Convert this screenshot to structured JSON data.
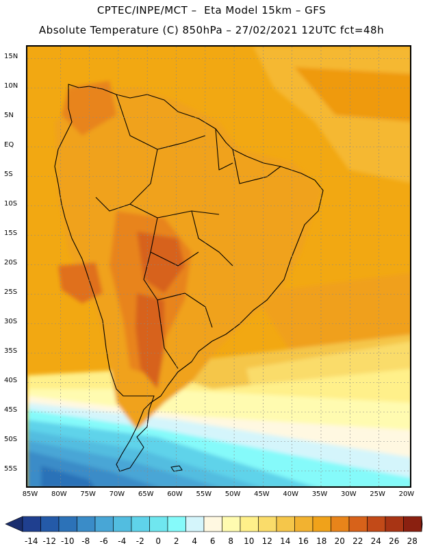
{
  "header": {
    "line1": "CPTEC/INPE/MCT –  Eta Model 15km – GFS",
    "line2": "Absolute Temperature (C) 850hPa – 27/02/2021 12UTC fct=48h"
  },
  "map": {
    "lat_labels": [
      "15N",
      "10N",
      "5N",
      "EQ",
      "5S",
      "10S",
      "15S",
      "20S",
      "25S",
      "30S",
      "35S",
      "40S",
      "45S",
      "50S",
      "55S"
    ],
    "lon_labels": [
      "85W",
      "80W",
      "75W",
      "70W",
      "65W",
      "60W",
      "55W",
      "50W",
      "45W",
      "40W",
      "35W",
      "30W",
      "25W",
      "20W"
    ]
  },
  "colorbar": {
    "unit": "C",
    "labels": [
      "-14",
      "-12",
      "-10",
      "-8",
      "-6",
      "-4",
      "-2",
      "0",
      "2",
      "4",
      "6",
      "8",
      "10",
      "12",
      "14",
      "16",
      "18",
      "20",
      "22",
      "24",
      "26",
      "28"
    ],
    "colors": [
      "#1f3f8f",
      "#245aa8",
      "#2c72b8",
      "#3a8cc8",
      "#48a6d6",
      "#52bde0",
      "#5fd3ea",
      "#6fe6ef",
      "#85fafa",
      "#d4f5fb",
      "#fff8e1",
      "#fffbb0",
      "#fff08a",
      "#fadc6a",
      "#f5c64a",
      "#f2b230",
      "#f0a21a",
      "#e8841a",
      "#d7621a",
      "#c24a18",
      "#a83414",
      "#8a2010"
    ],
    "end_low": "#1a2e6e",
    "end_high": "#7a0a28"
  }
}
